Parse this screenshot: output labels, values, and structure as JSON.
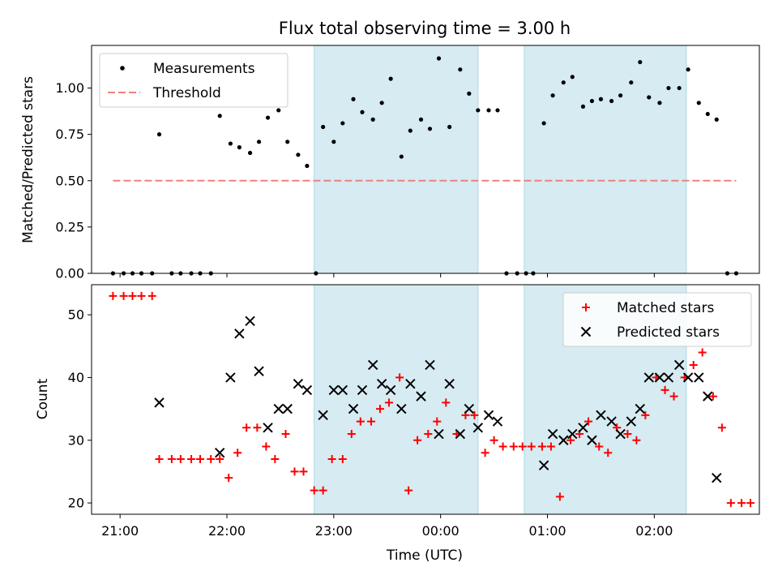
{
  "chart_data": [
    {
      "panel": "ratio",
      "type": "scatter",
      "title": "Flux total observing time = 3.00 h",
      "xlabel": "",
      "ylabel": "Matched/Predicted stars",
      "xlim": [
        "20:44",
        "02:59"
      ],
      "ylim": [
        0,
        1.23
      ],
      "yticks": [
        "0.00",
        "0.25",
        "0.50",
        "0.75",
        "1.00"
      ],
      "legend": "upper-left",
      "shaded_spans": [
        [
          "22:49",
          "00:21"
        ],
        [
          "00:47",
          "02:18"
        ]
      ],
      "series": [
        {
          "name": "Measurements",
          "marker": "dot",
          "color": "#000000",
          "points": [
            [
              "20:56",
              0
            ],
            [
              "21:02",
              0
            ],
            [
              "21:07",
              0
            ],
            [
              "21:12",
              0
            ],
            [
              "21:18",
              0
            ],
            [
              "21:22",
              0.75
            ],
            [
              "21:29",
              0
            ],
            [
              "21:34",
              0
            ],
            [
              "21:40",
              0
            ],
            [
              "21:45",
              0
            ],
            [
              "21:51",
              0
            ],
            [
              "21:56",
              0.85
            ],
            [
              "22:02",
              0.7
            ],
            [
              "22:07",
              0.68
            ],
            [
              "22:13",
              0.65
            ],
            [
              "22:18",
              0.71
            ],
            [
              "22:23",
              0.84
            ],
            [
              "22:29",
              0.88
            ],
            [
              "22:34",
              0.71
            ],
            [
              "22:40",
              0.64
            ],
            [
              "22:45",
              0.58
            ],
            [
              "22:50",
              0
            ],
            [
              "22:54",
              0.79
            ],
            [
              "23:00",
              0.71
            ],
            [
              "23:05",
              0.81
            ],
            [
              "23:11",
              0.94
            ],
            [
              "23:16",
              0.87
            ],
            [
              "23:22",
              0.83
            ],
            [
              "23:27",
              0.92
            ],
            [
              "23:32",
              1.05
            ],
            [
              "23:38",
              0.63
            ],
            [
              "23:43",
              0.77
            ],
            [
              "23:49",
              0.83
            ],
            [
              "23:54",
              0.78
            ],
            [
              "23:59",
              1.16
            ],
            [
              "00:05",
              0.79
            ],
            [
              "00:11",
              1.1
            ],
            [
              "00:16",
              0.97
            ],
            [
              "00:21",
              0.88
            ],
            [
              "00:27",
              0.88
            ],
            [
              "00:32",
              0.88
            ],
            [
              "00:37",
              0
            ],
            [
              "00:43",
              0
            ],
            [
              "00:48",
              0
            ],
            [
              "00:52",
              0
            ],
            [
              "00:58",
              0.81
            ],
            [
              "01:03",
              0.96
            ],
            [
              "01:09",
              1.03
            ],
            [
              "01:14",
              1.06
            ],
            [
              "01:20",
              0.9
            ],
            [
              "01:25",
              0.93
            ],
            [
              "01:30",
              0.94
            ],
            [
              "01:36",
              0.93
            ],
            [
              "01:41",
              0.96
            ],
            [
              "01:47",
              1.03
            ],
            [
              "01:52",
              1.14
            ],
            [
              "01:57",
              0.95
            ],
            [
              "02:03",
              0.92
            ],
            [
              "02:08",
              1.0
            ],
            [
              "02:14",
              1.0
            ],
            [
              "02:19",
              1.1
            ],
            [
              "02:25",
              0.92
            ],
            [
              "02:30",
              0.86
            ],
            [
              "02:35",
              0.83
            ],
            [
              "02:41",
              0
            ],
            [
              "02:46",
              0
            ]
          ]
        },
        {
          "name": "Threshold",
          "marker": "dashed-line",
          "color": "#f08080",
          "points": [
            [
              "20:56",
              0.5
            ],
            [
              "02:46",
              0.5
            ]
          ]
        }
      ]
    },
    {
      "panel": "counts",
      "type": "scatter",
      "title": "",
      "xlabel": "Time (UTC)",
      "ylabel": "Count",
      "xlim": [
        "20:44",
        "02:59"
      ],
      "ylim": [
        18.2,
        54.8
      ],
      "yticks": [
        "20",
        "30",
        "40",
        "50"
      ],
      "xticks": [
        "21:00",
        "22:00",
        "23:00",
        "00:00",
        "01:00",
        "02:00"
      ],
      "legend": "upper-right",
      "shaded_spans": [
        [
          "22:49",
          "00:21"
        ],
        [
          "00:47",
          "02:18"
        ]
      ],
      "series": [
        {
          "name": "Matched stars",
          "marker": "plus",
          "color": "#ff0000",
          "points": [
            [
              "20:56",
              53
            ],
            [
              "21:02",
              53
            ],
            [
              "21:07",
              53
            ],
            [
              "21:12",
              53
            ],
            [
              "21:18",
              53
            ],
            [
              "21:22",
              27
            ],
            [
              "21:29",
              27
            ],
            [
              "21:34",
              27
            ],
            [
              "21:40",
              27
            ],
            [
              "21:45",
              27
            ],
            [
              "21:51",
              27
            ],
            [
              "21:56",
              27
            ],
            [
              "22:01",
              24
            ],
            [
              "22:06",
              28
            ],
            [
              "22:11",
              32
            ],
            [
              "22:17",
              32
            ],
            [
              "22:22",
              29
            ],
            [
              "22:27",
              27
            ],
            [
              "22:33",
              31
            ],
            [
              "22:38",
              25
            ],
            [
              "22:43",
              25
            ],
            [
              "22:49",
              22
            ],
            [
              "22:54",
              22
            ],
            [
              "22:59",
              27
            ],
            [
              "23:05",
              27
            ],
            [
              "23:10",
              31
            ],
            [
              "23:15",
              33
            ],
            [
              "23:21",
              33
            ],
            [
              "23:26",
              35
            ],
            [
              "23:31",
              36
            ],
            [
              "23:37",
              40
            ],
            [
              "23:42",
              22
            ],
            [
              "23:47",
              30
            ],
            [
              "23:53",
              31
            ],
            [
              "23:58",
              33
            ],
            [
              "00:03",
              36
            ],
            [
              "00:09",
              31
            ],
            [
              "00:14",
              34
            ],
            [
              "00:19",
              34
            ],
            [
              "00:25",
              28
            ],
            [
              "00:30",
              30
            ],
            [
              "00:35",
              29
            ],
            [
              "00:41",
              29
            ],
            [
              "00:46",
              29
            ],
            [
              "00:51",
              29
            ],
            [
              "00:57",
              29
            ],
            [
              "01:02",
              29
            ],
            [
              "01:07",
              21
            ],
            [
              "01:13",
              30
            ],
            [
              "01:18",
              31
            ],
            [
              "01:23",
              33
            ],
            [
              "01:29",
              29
            ],
            [
              "01:34",
              28
            ],
            [
              "01:39",
              32
            ],
            [
              "01:45",
              31
            ],
            [
              "01:50",
              30
            ],
            [
              "01:55",
              34
            ],
            [
              "02:01",
              40
            ],
            [
              "02:06",
              38
            ],
            [
              "02:11",
              37
            ],
            [
              "02:17",
              40
            ],
            [
              "02:22",
              42
            ],
            [
              "02:27",
              44
            ],
            [
              "02:33",
              37
            ],
            [
              "02:38",
              32
            ],
            [
              "02:43",
              20
            ],
            [
              "02:49",
              20
            ],
            [
              "02:54",
              20
            ]
          ]
        },
        {
          "name": "Predicted stars",
          "marker": "x",
          "color": "#000000",
          "points": [
            [
              "21:22",
              36
            ],
            [
              "21:56",
              28
            ],
            [
              "22:02",
              40
            ],
            [
              "22:07",
              47
            ],
            [
              "22:13",
              49
            ],
            [
              "22:18",
              41
            ],
            [
              "22:23",
              32
            ],
            [
              "22:29",
              35
            ],
            [
              "22:34",
              35
            ],
            [
              "22:40",
              39
            ],
            [
              "22:45",
              38
            ],
            [
              "22:54",
              34
            ],
            [
              "23:00",
              38
            ],
            [
              "23:05",
              38
            ],
            [
              "23:11",
              35
            ],
            [
              "23:16",
              38
            ],
            [
              "23:22",
              42
            ],
            [
              "23:27",
              39
            ],
            [
              "23:32",
              38
            ],
            [
              "23:38",
              35
            ],
            [
              "23:43",
              39
            ],
            [
              "23:49",
              37
            ],
            [
              "23:54",
              42
            ],
            [
              "23:59",
              31
            ],
            [
              "00:05",
              39
            ],
            [
              "00:11",
              31
            ],
            [
              "00:16",
              35
            ],
            [
              "00:21",
              32
            ],
            [
              "00:27",
              34
            ],
            [
              "00:32",
              33
            ],
            [
              "00:58",
              26
            ],
            [
              "01:03",
              31
            ],
            [
              "01:09",
              30
            ],
            [
              "01:14",
              31
            ],
            [
              "01:20",
              32
            ],
            [
              "01:25",
              30
            ],
            [
              "01:30",
              34
            ],
            [
              "01:36",
              33
            ],
            [
              "01:41",
              31
            ],
            [
              "01:47",
              33
            ],
            [
              "01:52",
              35
            ],
            [
              "01:57",
              40
            ],
            [
              "02:03",
              40
            ],
            [
              "02:08",
              40
            ],
            [
              "02:14",
              42
            ],
            [
              "02:19",
              40
            ],
            [
              "02:25",
              40
            ],
            [
              "02:30",
              37
            ],
            [
              "02:35",
              24
            ]
          ]
        }
      ]
    }
  ],
  "colors": {
    "shade": "#add8e6",
    "threshold": "#f08080",
    "matched": "#ff0000",
    "measurements": "#000000",
    "predicted": "#000000"
  }
}
